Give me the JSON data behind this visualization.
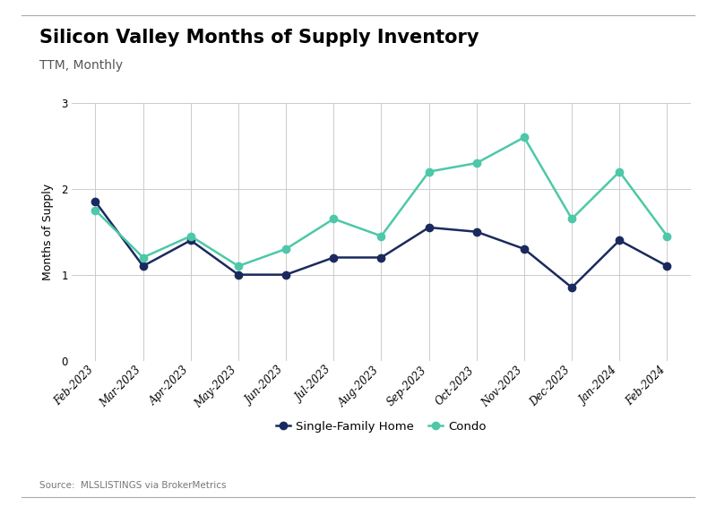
{
  "title": "Silicon Valley Months of Supply Inventory",
  "subtitle": "TTM, Monthly",
  "ylabel": "Months of Supply",
  "source": "Source:  MLSLISTINGS via BrokerMetrics",
  "months": [
    "Feb-2023",
    "Mar-2023",
    "Apr-2023",
    "May-2023",
    "Jun-2023",
    "Jul-2023",
    "Aug-2023",
    "Sep-2023",
    "Oct-2023",
    "Nov-2023",
    "Dec-2023",
    "Jan-2024",
    "Feb-2024"
  ],
  "sfh": [
    1.85,
    1.1,
    1.4,
    1.0,
    1.0,
    1.2,
    1.2,
    1.55,
    1.5,
    1.3,
    0.85,
    1.4,
    1.1
  ],
  "condo": [
    1.75,
    1.2,
    1.45,
    1.1,
    1.3,
    1.65,
    1.45,
    2.2,
    2.3,
    2.6,
    1.65,
    2.2,
    1.45
  ],
  "sfh_color": "#1b2a5e",
  "condo_color": "#4dc8a8",
  "background_color": "#ffffff",
  "grid_color": "#cccccc",
  "ylim": [
    0,
    3
  ],
  "yticks": [
    0,
    1,
    2,
    3
  ],
  "legend_labels": [
    "Single-Family Home",
    "Condo"
  ],
  "title_fontsize": 15,
  "subtitle_fontsize": 10,
  "axis_label_fontsize": 9,
  "tick_fontsize": 8.5,
  "legend_fontsize": 9.5,
  "source_fontsize": 7.5,
  "line_width": 1.8,
  "marker_size": 6
}
